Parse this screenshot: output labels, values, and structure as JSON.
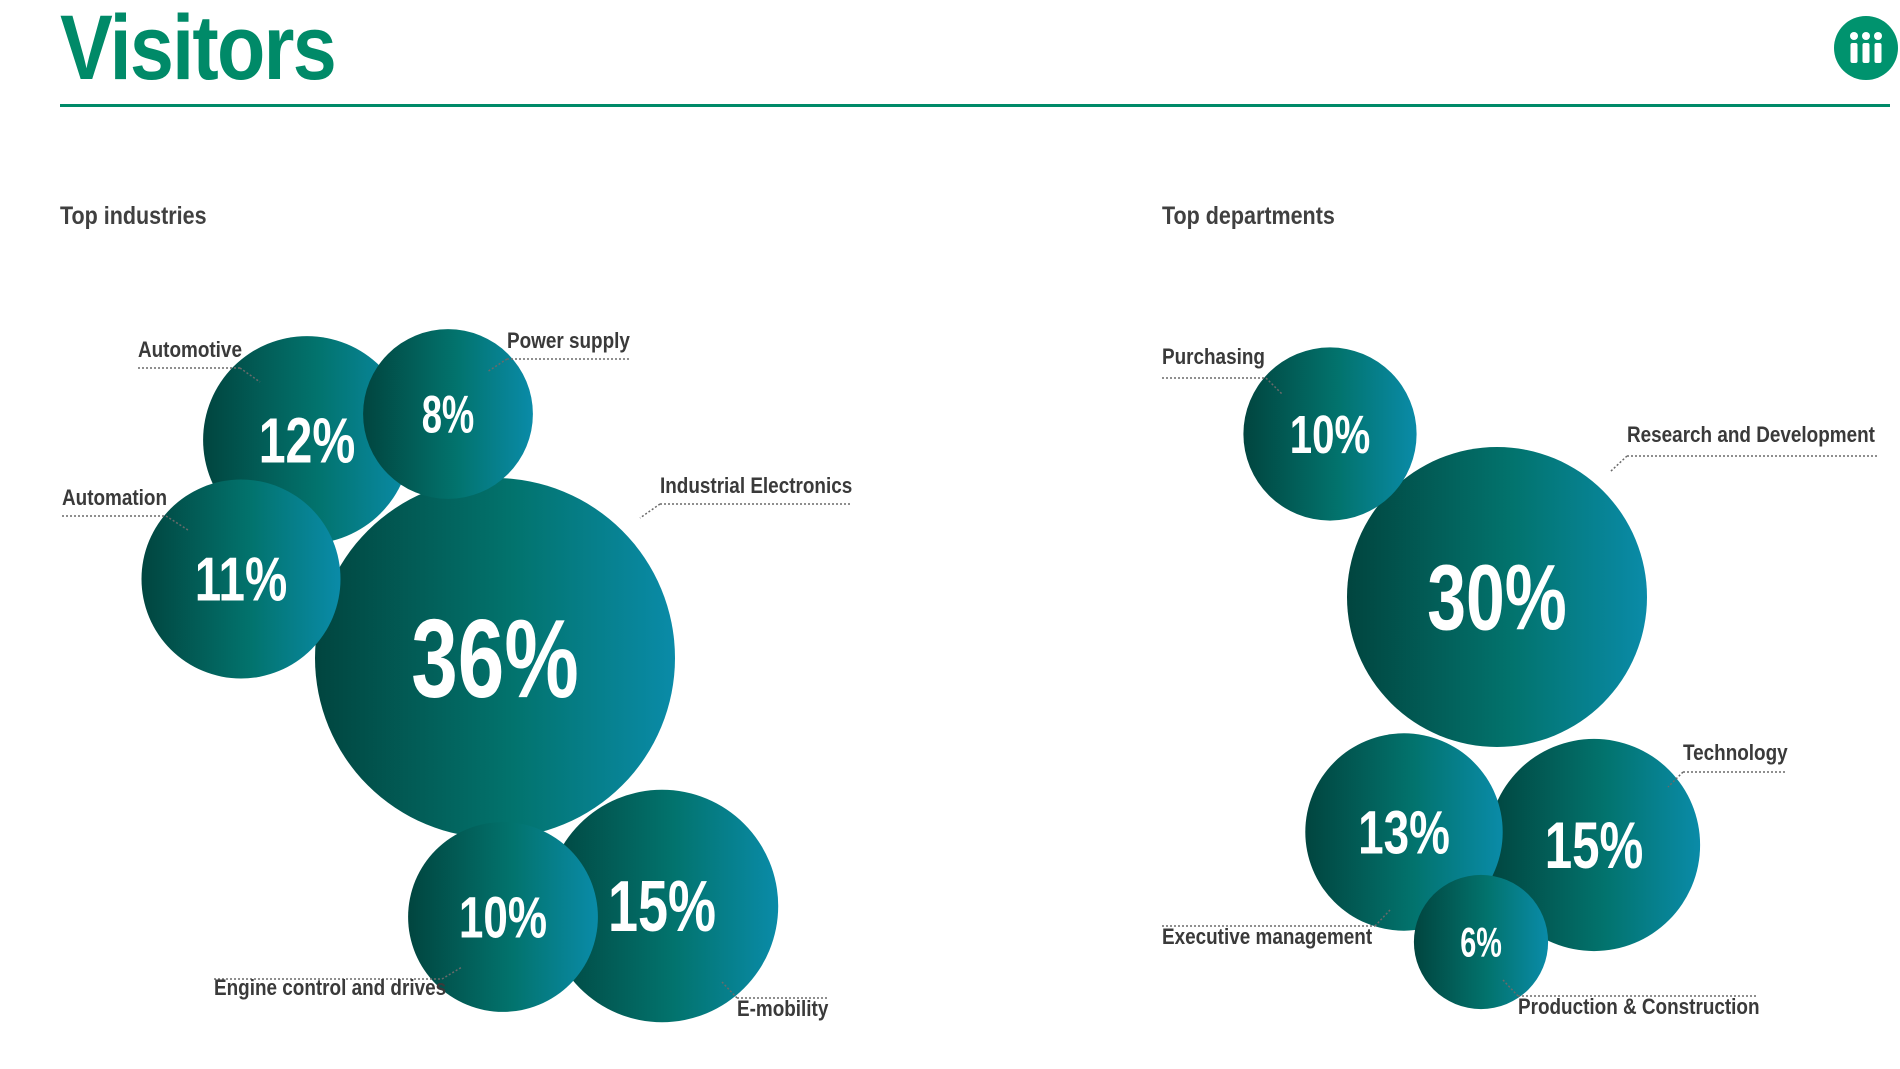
{
  "header": {
    "title": "Visitors",
    "logo_icon": "three-figures-logo-icon",
    "accent_color": "#008a68"
  },
  "chart_data": [
    {
      "type": "bubble",
      "title": "Top industries",
      "unit": "%",
      "categories": [
        "Industrial Electronics",
        "E-mobility",
        "Automotive",
        "Automation",
        "Engine control and drives",
        "Power supply"
      ],
      "values": [
        36,
        15,
        12,
        11,
        10,
        8
      ],
      "value_labels": [
        "36%",
        "15%",
        "12%",
        "11%",
        "10%",
        "8%"
      ]
    },
    {
      "type": "bubble",
      "title": "Top departments",
      "unit": "%",
      "categories": [
        "Research and Development",
        "Technology",
        "Executive management",
        "Purchasing",
        "Production & Construction"
      ],
      "values": [
        30,
        15,
        13,
        10,
        6
      ],
      "value_labels": [
        "30%",
        "15%",
        "13%",
        "10%",
        "6%"
      ]
    }
  ]
}
